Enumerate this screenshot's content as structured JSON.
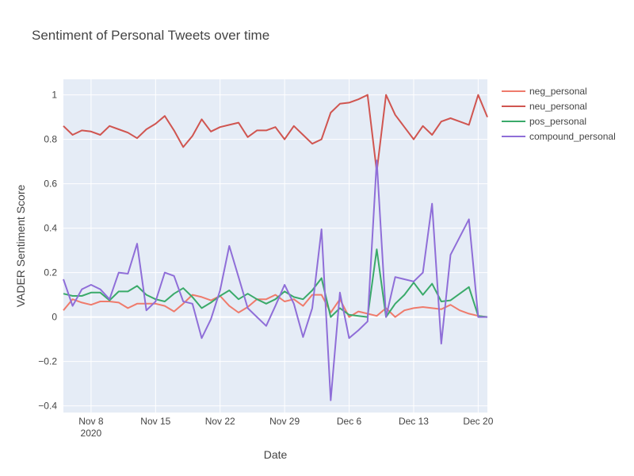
{
  "chart_data": {
    "type": "line",
    "title": "Sentiment of Personal Tweets over time",
    "xlabel": "Date",
    "ylabel": "VADER Sentiment Score",
    "ylim": [
      -0.43,
      1.07
    ],
    "xlim": [
      "2020-11-05",
      "2020-12-21"
    ],
    "grid": true,
    "legend_position": "top-right",
    "x_ticks": [
      {
        "date": "2020-11-08",
        "label": "Nov 8",
        "sublabel": "2020"
      },
      {
        "date": "2020-11-15",
        "label": "Nov 15",
        "sublabel": ""
      },
      {
        "date": "2020-11-22",
        "label": "Nov 22",
        "sublabel": ""
      },
      {
        "date": "2020-11-29",
        "label": "Nov 29",
        "sublabel": ""
      },
      {
        "date": "2020-12-06",
        "label": "Dec 6",
        "sublabel": ""
      },
      {
        "date": "2020-12-13",
        "label": "Dec 13",
        "sublabel": ""
      },
      {
        "date": "2020-12-20",
        "label": "Dec 20",
        "sublabel": ""
      }
    ],
    "y_ticks": [
      {
        "value": -0.4,
        "label": "−0.4"
      },
      {
        "value": -0.2,
        "label": "−0.2"
      },
      {
        "value": 0,
        "label": "0"
      },
      {
        "value": 0.2,
        "label": "0.2"
      },
      {
        "value": 0.4,
        "label": "0.4"
      },
      {
        "value": 0.6,
        "label": "0.6"
      },
      {
        "value": 0.8,
        "label": "0.8"
      },
      {
        "value": 1,
        "label": "1"
      }
    ],
    "x": [
      "2020-11-05",
      "2020-11-06",
      "2020-11-07",
      "2020-11-08",
      "2020-11-09",
      "2020-11-10",
      "2020-11-11",
      "2020-11-12",
      "2020-11-13",
      "2020-11-14",
      "2020-11-15",
      "2020-11-16",
      "2020-11-17",
      "2020-11-18",
      "2020-11-19",
      "2020-11-20",
      "2020-11-21",
      "2020-11-22",
      "2020-11-23",
      "2020-11-24",
      "2020-11-25",
      "2020-11-26",
      "2020-11-27",
      "2020-11-28",
      "2020-11-29",
      "2020-11-30",
      "2020-12-01",
      "2020-12-02",
      "2020-12-03",
      "2020-12-04",
      "2020-12-05",
      "2020-12-06",
      "2020-12-07",
      "2020-12-08",
      "2020-12-09",
      "2020-12-10",
      "2020-12-11",
      "2020-12-12",
      "2020-12-13",
      "2020-12-14",
      "2020-12-15",
      "2020-12-16",
      "2020-12-17",
      "2020-12-18",
      "2020-12-19",
      "2020-12-20",
      "2020-12-21"
    ],
    "series": [
      {
        "name": "neg_personal",
        "color": "#EF7B6C",
        "values": [
          0.03,
          0.08,
          0.065,
          0.055,
          0.07,
          0.07,
          0.065,
          0.04,
          0.06,
          0.06,
          0.06,
          0.05,
          0.025,
          0.06,
          0.1,
          0.09,
          0.075,
          0.095,
          0.05,
          0.02,
          0.045,
          0.08,
          0.08,
          0.1,
          0.07,
          0.08,
          0.05,
          0.1,
          0.1,
          0.02,
          0.08,
          0.0,
          0.025,
          0.015,
          0.005,
          0.04,
          0.0,
          0.03,
          0.04,
          0.045,
          0.04,
          0.035,
          0.055,
          0.03,
          0.015,
          0.005,
          0.0
        ]
      },
      {
        "name": "neu_personal",
        "color": "#D05550",
        "values": [
          0.86,
          0.82,
          0.84,
          0.835,
          0.82,
          0.86,
          0.845,
          0.83,
          0.805,
          0.845,
          0.87,
          0.905,
          0.84,
          0.765,
          0.815,
          0.89,
          0.835,
          0.855,
          0.865,
          0.875,
          0.81,
          0.84,
          0.84,
          0.855,
          0.8,
          0.86,
          0.82,
          0.78,
          0.8,
          0.92,
          0.96,
          0.965,
          0.98,
          1.0,
          0.655,
          1.0,
          0.91,
          0.855,
          0.8,
          0.86,
          0.82,
          0.88,
          0.895,
          0.88,
          0.865,
          1.0,
          0.9
        ]
      },
      {
        "name": "pos_personal",
        "color": "#3AAA6A",
        "values": [
          0.105,
          0.095,
          0.095,
          0.11,
          0.11,
          0.075,
          0.115,
          0.115,
          0.14,
          0.1,
          0.08,
          0.07,
          0.105,
          0.13,
          0.09,
          0.04,
          0.065,
          0.095,
          0.12,
          0.08,
          0.105,
          0.08,
          0.06,
          0.08,
          0.115,
          0.09,
          0.08,
          0.12,
          0.175,
          0.0,
          0.04,
          0.01,
          0.005,
          0.0,
          0.305,
          0.0,
          0.06,
          0.1,
          0.155,
          0.1,
          0.15,
          0.07,
          0.075,
          0.105,
          0.135,
          0.005,
          0.0
        ]
      },
      {
        "name": "compound_personal",
        "color": "#8F6ED8",
        "values": [
          0.17,
          0.05,
          0.125,
          0.145,
          0.125,
          0.08,
          0.2,
          0.195,
          0.33,
          0.03,
          0.07,
          0.2,
          0.185,
          0.07,
          0.06,
          -0.095,
          -0.01,
          0.12,
          0.32,
          0.18,
          0.04,
          0.0,
          -0.04,
          0.05,
          0.145,
          0.06,
          -0.09,
          0.04,
          0.395,
          -0.375,
          0.11,
          -0.095,
          -0.06,
          -0.02,
          0.705,
          0.0,
          0.18,
          0.17,
          0.16,
          0.2,
          0.51,
          -0.12,
          0.28,
          0.36,
          0.44,
          0.0,
          0.0
        ]
      }
    ]
  }
}
